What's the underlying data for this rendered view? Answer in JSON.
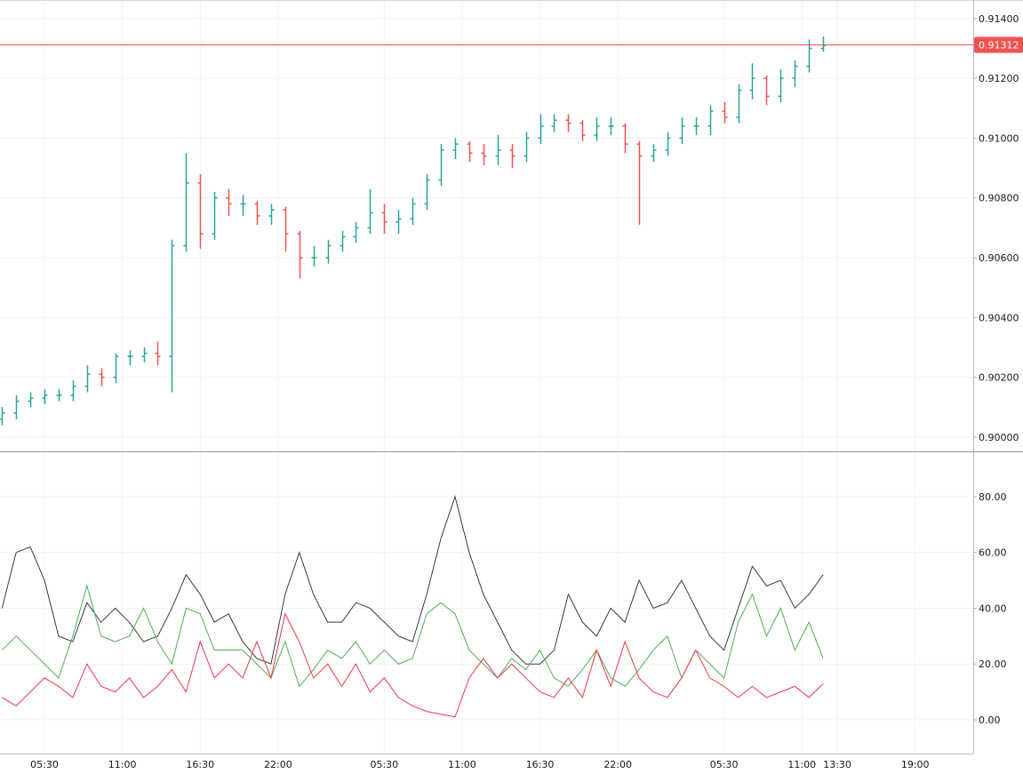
{
  "chart_data": [
    {
      "type": "ohlc",
      "x": [
        0,
        1,
        2,
        3,
        4,
        5,
        6,
        7,
        8,
        9,
        10,
        11,
        12,
        13,
        14,
        15,
        16,
        17,
        18,
        19,
        20,
        21,
        22,
        23,
        24,
        25,
        26,
        27,
        28,
        29,
        30,
        31,
        32,
        33,
        34,
        35,
        36,
        37,
        38,
        39,
        40,
        41,
        42,
        43,
        44,
        45,
        46,
        47,
        48,
        49,
        50,
        51,
        52,
        53,
        54,
        55,
        56,
        57,
        58
      ],
      "open": [
        0.9006,
        0.9008,
        0.9012,
        0.9013,
        0.9014,
        0.9014,
        0.9017,
        0.9021,
        0.902,
        0.9027,
        0.9027,
        0.9028,
        0.9027,
        0.9064,
        0.9085,
        0.9068,
        0.908,
        0.9078,
        0.9078,
        0.9074,
        0.9076,
        0.9068,
        0.906,
        0.906,
        0.9064,
        0.9067,
        0.907,
        0.9075,
        0.9072,
        0.9073,
        0.9078,
        0.9086,
        0.9096,
        0.9098,
        0.9095,
        0.9094,
        0.9096,
        0.9094,
        0.91,
        0.9104,
        0.9106,
        0.9105,
        0.9101,
        0.9104,
        0.9104,
        0.9098,
        0.9094,
        0.9096,
        0.91,
        0.9104,
        0.9104,
        0.9109,
        0.9107,
        0.9116,
        0.912,
        0.9114,
        0.912,
        0.9124,
        0.913
      ],
      "high": [
        0.901,
        0.9014,
        0.9015,
        0.9016,
        0.9016,
        0.9019,
        0.9024,
        0.9023,
        0.9028,
        0.9029,
        0.903,
        0.9032,
        0.9066,
        0.9095,
        0.9088,
        0.9082,
        0.9083,
        0.9081,
        0.9079,
        0.9078,
        0.9077,
        0.9069,
        0.9064,
        0.9066,
        0.9069,
        0.9072,
        0.9083,
        0.9078,
        0.9076,
        0.908,
        0.9088,
        0.9098,
        0.91,
        0.9099,
        0.9098,
        0.9101,
        0.9098,
        0.9102,
        0.9108,
        0.9108,
        0.9108,
        0.9106,
        0.9107,
        0.9107,
        0.9105,
        0.9099,
        0.9098,
        0.9102,
        0.9107,
        0.9107,
        0.9111,
        0.9112,
        0.9118,
        0.9125,
        0.9121,
        0.9123,
        0.9126,
        0.9133,
        0.9134
      ],
      "low": [
        0.9004,
        0.9006,
        0.901,
        0.9011,
        0.9012,
        0.9012,
        0.9015,
        0.9017,
        0.9018,
        0.9024,
        0.9025,
        0.9024,
        0.9015,
        0.9062,
        0.9063,
        0.9066,
        0.9074,
        0.9074,
        0.9071,
        0.9071,
        0.9062,
        0.9053,
        0.9057,
        0.9058,
        0.9062,
        0.9065,
        0.9068,
        0.9068,
        0.9068,
        0.9071,
        0.9076,
        0.9084,
        0.9093,
        0.9092,
        0.9091,
        0.9091,
        0.909,
        0.9092,
        0.9098,
        0.9102,
        0.9102,
        0.9099,
        0.9099,
        0.9101,
        0.9095,
        0.9071,
        0.9092,
        0.9094,
        0.9098,
        0.9101,
        0.9101,
        0.9105,
        0.9105,
        0.9113,
        0.9111,
        0.9112,
        0.9117,
        0.9122,
        0.9129
      ],
      "close": [
        0.9008,
        0.9012,
        0.9013,
        0.9014,
        0.9014,
        0.9017,
        0.9021,
        0.902,
        0.9027,
        0.9027,
        0.9028,
        0.9027,
        0.9064,
        0.9085,
        0.9068,
        0.908,
        0.9078,
        0.9078,
        0.9074,
        0.9076,
        0.9068,
        0.906,
        0.906,
        0.9064,
        0.9067,
        0.907,
        0.9075,
        0.9072,
        0.9073,
        0.9078,
        0.9086,
        0.9096,
        0.9098,
        0.9095,
        0.9094,
        0.9096,
        0.9094,
        0.91,
        0.9104,
        0.9106,
        0.9105,
        0.9101,
        0.9104,
        0.9104,
        0.9098,
        0.9094,
        0.9096,
        0.91,
        0.9104,
        0.9104,
        0.9109,
        0.9107,
        0.9116,
        0.912,
        0.9114,
        0.912,
        0.9124,
        0.913,
        0.9131
      ],
      "up_color": "#26a69a",
      "down_color": "#ef5350",
      "xlim": [
        -0.14,
        68.6
      ],
      "xticks": [
        {
          "value": 3,
          "label": "05:30"
        },
        {
          "value": 8.5,
          "label": "11:00"
        },
        {
          "value": 14,
          "label": "16:30"
        },
        {
          "value": 19.5,
          "label": "22:00"
        },
        {
          "value": 27,
          "label": "05:30"
        },
        {
          "value": 32.5,
          "label": "11:00"
        },
        {
          "value": 38,
          "label": "16:30"
        },
        {
          "value": 43.5,
          "label": "22:00"
        },
        {
          "value": 51,
          "label": "05:30"
        },
        {
          "value": 56.5,
          "label": "11:00"
        },
        {
          "value": 59,
          "label": "13:30"
        },
        {
          "value": 64.5,
          "label": "19:00"
        }
      ],
      "ylim": [
        0.89952,
        0.91462
      ],
      "yticks": [
        {
          "value": 0.9,
          "label": "0.90000"
        },
        {
          "value": 0.902,
          "label": "0.90200"
        },
        {
          "value": 0.904,
          "label": "0.90400"
        },
        {
          "value": 0.906,
          "label": "0.90600"
        },
        {
          "value": 0.908,
          "label": "0.90800"
        },
        {
          "value": 0.91,
          "label": "0.91000"
        },
        {
          "value": 0.912,
          "label": "0.91200"
        },
        {
          "value": 0.914,
          "label": "0.91400"
        }
      ],
      "last_price": 0.91312,
      "last_price_color": "#ef5350",
      "grid": true
    },
    {
      "type": "line",
      "series": [
        {
          "color": "#363a45",
          "values": [
            40,
            60,
            62,
            50,
            30,
            28,
            42,
            35,
            40,
            35,
            28,
            30,
            40,
            52,
            45,
            35,
            38,
            28,
            22,
            20,
            45,
            60,
            45,
            35,
            35,
            42,
            40,
            35,
            30,
            28,
            45,
            65,
            80,
            60,
            45,
            35,
            25,
            20,
            20,
            25,
            45,
            35,
            30,
            40,
            35,
            50,
            40,
            42,
            50,
            40,
            30,
            25,
            40,
            55,
            48,
            50,
            40,
            45,
            52
          ]
        },
        {
          "color": "#4caf50",
          "values": [
            25,
            30,
            25,
            20,
            15,
            30,
            48,
            30,
            28,
            30,
            40,
            28,
            20,
            40,
            38,
            25,
            25,
            25,
            20,
            15,
            28,
            12,
            18,
            25,
            22,
            28,
            20,
            25,
            20,
            22,
            38,
            42,
            38,
            25,
            20,
            15,
            22,
            18,
            25,
            15,
            12,
            18,
            25,
            15,
            12,
            18,
            25,
            30,
            15,
            25,
            20,
            15,
            35,
            45,
            30,
            40,
            25,
            35,
            22
          ]
        },
        {
          "color": "#f23645",
          "values": [
            8,
            5,
            10,
            15,
            12,
            8,
            20,
            12,
            10,
            15,
            8,
            12,
            18,
            10,
            28,
            15,
            20,
            15,
            28,
            15,
            38,
            28,
            15,
            20,
            12,
            20,
            10,
            15,
            8,
            5,
            3,
            2,
            1,
            15,
            22,
            15,
            20,
            15,
            10,
            8,
            15,
            8,
            25,
            12,
            28,
            15,
            10,
            8,
            15,
            25,
            15,
            12,
            8,
            12,
            8,
            10,
            12,
            8,
            13
          ]
        }
      ],
      "ylim": [
        -12.1,
        95.9
      ],
      "yticks": [
        {
          "value": 0,
          "label": "0.00"
        },
        {
          "value": 20,
          "label": "20.00"
        },
        {
          "value": 40,
          "label": "40.00"
        },
        {
          "value": 60,
          "label": "60.00"
        },
        {
          "value": 80,
          "label": "80.00"
        }
      ],
      "grid": true
    }
  ]
}
